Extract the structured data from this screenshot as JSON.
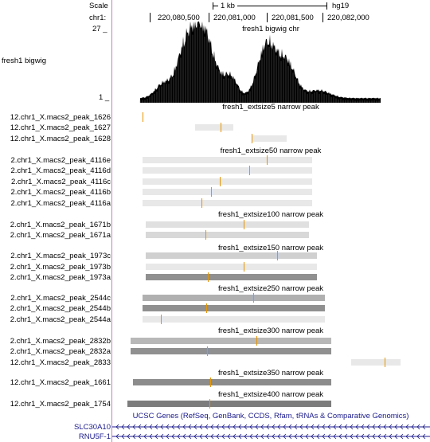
{
  "ruler": {
    "scale_label": "Scale",
    "scale_value": "1 kb",
    "assembly": "hg19",
    "chrom_label": "chr1:",
    "positions": [
      "220,080,500",
      "220,081,000",
      "220,081,500",
      "220,082,000"
    ]
  },
  "bigwig": {
    "title": "fresh1 bigwig chr",
    "label": "fresh1 bigwig",
    "max": "27 _",
    "min": "1 _"
  },
  "groups": [
    {
      "title": "fresh1_extsize5 narrow peak",
      "rows": [
        "12.chr1_X.macs2_peak_1626",
        "12.chr1_X.macs2_peak_1627",
        "12.chr1_X.macs2_peak_1628"
      ]
    },
    {
      "title": "fresh1_extsize50 narrow peak",
      "rows": [
        "2.chr1_X.macs2_peak_4116e",
        "2.chr1_X.macs2_peak_4116d",
        "2.chr1_X.macs2_peak_4116c",
        "2.chr1_X.macs2_peak_4116b",
        "2.chr1_X.macs2_peak_4116a"
      ]
    },
    {
      "title": "fresh1_extsize100 narrow peak",
      "rows": [
        "2.chr1_X.macs2_peak_1671b",
        "2.chr1_X.macs2_peak_1671a"
      ]
    },
    {
      "title": "fresh1_extsize150 narrow peak",
      "rows": [
        "2.chr1_X.macs2_peak_1973c",
        "2.chr1_X.macs2_peak_1973b",
        "2.chr1_X.macs2_peak_1973a"
      ]
    },
    {
      "title": "fresh1_extsize250 narrow peak",
      "rows": [
        "2.chr1_X.macs2_peak_2544c",
        "2.chr1_X.macs2_peak_2544b",
        "2.chr1_X.macs2_peak_2544a"
      ]
    },
    {
      "title": "fresh1_extsize300 narrow peak",
      "rows": [
        "2.chr1_X.macs2_peak_2832b",
        "2.chr1_X.macs2_peak_2832a",
        "12.chr1_X.macs2_peak_2833"
      ]
    },
    {
      "title": "fresh1_extsize350 narrow peak",
      "rows": [
        "12.chr1_X.macs2_peak_1661"
      ]
    },
    {
      "title": "fresh1_extsize400 narrow peak",
      "rows": [
        "12.chr1_X.macs2_peak_1754"
      ]
    }
  ],
  "genes": {
    "title": "UCSC Genes (RefSeq, GenBank, CCDS, Rfam, tRNAs & Comparative Genomics)",
    "rows": [
      "SLC30A10",
      "RNU5F-1"
    ]
  },
  "colors": {
    "summit": "#e69500",
    "gene": "#1a1a8c",
    "signal": "#000000",
    "separator": "#c080c0"
  }
}
